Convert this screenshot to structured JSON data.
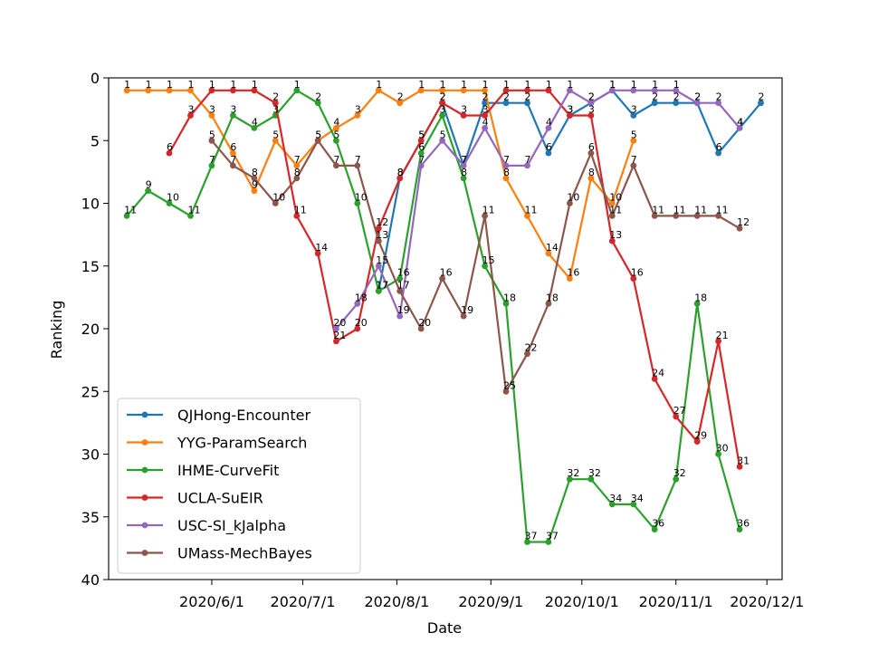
{
  "chart_data": {
    "type": "line",
    "xlabel": "Date",
    "ylabel": "Ranking",
    "ylim": [
      40,
      0
    ],
    "y_inverted": true,
    "y_ticks": [
      0,
      5,
      10,
      15,
      20,
      25,
      30,
      35,
      40
    ],
    "x_ticks": [
      {
        "date": "2020-06-01",
        "label": "2020/6/1"
      },
      {
        "date": "2020-07-01",
        "label": "2020/7/1"
      },
      {
        "date": "2020-08-01",
        "label": "2020/8/1"
      },
      {
        "date": "2020-09-01",
        "label": "2020/9/1"
      },
      {
        "date": "2020-10-01",
        "label": "2020/10/1"
      },
      {
        "date": "2020-11-01",
        "label": "2020/11/1"
      },
      {
        "date": "2020-12-01",
        "label": "2020/12/1"
      }
    ],
    "x_range": [
      "2020-04-28",
      "2020-12-06"
    ],
    "grid": false,
    "legend_position": "lower-left",
    "series": [
      {
        "name": "QJHong-Encounter",
        "color": "#1f77b4",
        "points": [
          [
            "2020-07-26",
            17
          ],
          [
            "2020-08-02",
            8
          ],
          [
            "2020-08-09",
            5
          ],
          [
            "2020-08-16",
            2
          ],
          [
            "2020-08-23",
            7
          ],
          [
            "2020-08-30",
            2
          ],
          [
            "2020-09-06",
            2
          ],
          [
            "2020-09-13",
            2
          ],
          [
            "2020-09-20",
            6
          ],
          [
            "2020-09-27",
            3
          ],
          [
            "2020-10-04",
            2
          ],
          [
            "2020-10-11",
            1
          ],
          [
            "2020-10-18",
            3
          ],
          [
            "2020-10-25",
            2
          ],
          [
            "2020-11-01",
            2
          ],
          [
            "2020-11-08",
            2
          ],
          [
            "2020-11-15",
            6
          ],
          [
            "2020-11-22",
            4
          ],
          [
            "2020-11-29",
            2
          ]
        ]
      },
      {
        "name": "YYG-ParamSearch",
        "color": "#ff7f0e",
        "points": [
          [
            "2020-05-04",
            1
          ],
          [
            "2020-05-11",
            1
          ],
          [
            "2020-05-18",
            1
          ],
          [
            "2020-05-25",
            1
          ],
          [
            "2020-06-01",
            3
          ],
          [
            "2020-06-08",
            6
          ],
          [
            "2020-06-15",
            9
          ],
          [
            "2020-06-22",
            5
          ],
          [
            "2020-06-29",
            7
          ],
          [
            "2020-07-06",
            5
          ],
          [
            "2020-07-12",
            4
          ],
          [
            "2020-07-19",
            3
          ],
          [
            "2020-07-26",
            1
          ],
          [
            "2020-08-02",
            2
          ],
          [
            "2020-08-09",
            1
          ],
          [
            "2020-08-16",
            1
          ],
          [
            "2020-08-23",
            1
          ],
          [
            "2020-08-30",
            1
          ],
          [
            "2020-09-06",
            8
          ],
          [
            "2020-09-13",
            11
          ],
          [
            "2020-09-20",
            14
          ],
          [
            "2020-09-27",
            16
          ],
          [
            "2020-10-04",
            8
          ],
          [
            "2020-10-11",
            10
          ],
          [
            "2020-10-18",
            5
          ]
        ]
      },
      {
        "name": "IHME-CurveFit",
        "color": "#2ca02c",
        "points": [
          [
            "2020-05-04",
            11
          ],
          [
            "2020-05-11",
            9
          ],
          [
            "2020-05-18",
            10
          ],
          [
            "2020-05-25",
            11
          ],
          [
            "2020-06-01",
            7
          ],
          [
            "2020-06-08",
            3
          ],
          [
            "2020-06-15",
            4
          ],
          [
            "2020-06-22",
            3
          ],
          [
            "2020-06-29",
            1
          ],
          [
            "2020-07-06",
            2
          ],
          [
            "2020-07-12",
            5
          ],
          [
            "2020-07-19",
            10
          ],
          [
            "2020-07-26",
            17
          ],
          [
            "2020-08-02",
            16
          ],
          [
            "2020-08-09",
            6
          ],
          [
            "2020-08-16",
            3
          ],
          [
            "2020-08-23",
            8
          ],
          [
            "2020-08-30",
            15
          ],
          [
            "2020-09-06",
            18
          ],
          [
            "2020-09-13",
            37
          ],
          [
            "2020-09-20",
            37
          ],
          [
            "2020-09-27",
            32
          ],
          [
            "2020-10-04",
            32
          ],
          [
            "2020-10-11",
            34
          ],
          [
            "2020-10-18",
            34
          ],
          [
            "2020-10-25",
            36
          ],
          [
            "2020-11-01",
            32
          ],
          [
            "2020-11-08",
            18
          ],
          [
            "2020-11-15",
            30
          ],
          [
            "2020-11-22",
            36
          ]
        ]
      },
      {
        "name": "UCLA-SuEIR",
        "color": "#d62728",
        "points": [
          [
            "2020-05-18",
            6
          ],
          [
            "2020-05-25",
            3
          ],
          [
            "2020-06-01",
            1
          ],
          [
            "2020-06-08",
            1
          ],
          [
            "2020-06-15",
            1
          ],
          [
            "2020-06-22",
            2
          ],
          [
            "2020-06-29",
            11
          ],
          [
            "2020-07-06",
            14
          ],
          [
            "2020-07-12",
            21
          ],
          [
            "2020-07-19",
            20
          ],
          [
            "2020-07-26",
            12
          ],
          [
            "2020-08-02",
            8
          ],
          [
            "2020-08-09",
            5
          ],
          [
            "2020-08-16",
            2
          ],
          [
            "2020-08-23",
            3
          ],
          [
            "2020-08-30",
            3
          ],
          [
            "2020-09-06",
            1
          ],
          [
            "2020-09-13",
            1
          ],
          [
            "2020-09-20",
            1
          ],
          [
            "2020-09-27",
            3
          ],
          [
            "2020-10-04",
            3
          ],
          [
            "2020-10-11",
            13
          ],
          [
            "2020-10-18",
            16
          ],
          [
            "2020-10-25",
            24
          ],
          [
            "2020-11-01",
            27
          ],
          [
            "2020-11-08",
            29
          ],
          [
            "2020-11-15",
            21
          ],
          [
            "2020-11-22",
            31
          ]
        ]
      },
      {
        "name": "USC-SI_kJalpha",
        "color": "#9467bd",
        "points": [
          [
            "2020-07-12",
            20
          ],
          [
            "2020-07-19",
            18
          ],
          [
            "2020-07-26",
            15
          ],
          [
            "2020-08-02",
            19
          ],
          [
            "2020-08-09",
            7
          ],
          [
            "2020-08-16",
            5
          ],
          [
            "2020-08-23",
            7
          ],
          [
            "2020-08-30",
            4
          ],
          [
            "2020-09-06",
            7
          ],
          [
            "2020-09-13",
            7
          ],
          [
            "2020-09-20",
            4
          ],
          [
            "2020-09-27",
            1
          ],
          [
            "2020-10-04",
            2
          ],
          [
            "2020-10-11",
            1
          ],
          [
            "2020-10-18",
            1
          ],
          [
            "2020-10-25",
            1
          ],
          [
            "2020-11-01",
            1
          ],
          [
            "2020-11-08",
            2
          ],
          [
            "2020-11-15",
            2
          ],
          [
            "2020-11-22",
            4
          ]
        ]
      },
      {
        "name": "UMass-MechBayes",
        "color": "#8c564b",
        "points": [
          [
            "2020-06-01",
            5
          ],
          [
            "2020-06-08",
            7
          ],
          [
            "2020-06-15",
            8
          ],
          [
            "2020-06-22",
            10
          ],
          [
            "2020-06-29",
            8
          ],
          [
            "2020-07-06",
            5
          ],
          [
            "2020-07-12",
            7
          ],
          [
            "2020-07-19",
            7
          ],
          [
            "2020-07-26",
            13
          ],
          [
            "2020-08-02",
            17
          ],
          [
            "2020-08-09",
            20
          ],
          [
            "2020-08-16",
            16
          ],
          [
            "2020-08-23",
            19
          ],
          [
            "2020-08-30",
            11
          ],
          [
            "2020-09-06",
            25
          ],
          [
            "2020-09-13",
            22
          ],
          [
            "2020-09-20",
            18
          ],
          [
            "2020-09-27",
            10
          ],
          [
            "2020-10-04",
            6
          ],
          [
            "2020-10-11",
            11
          ],
          [
            "2020-10-18",
            7
          ],
          [
            "2020-10-25",
            11
          ],
          [
            "2020-11-01",
            11
          ],
          [
            "2020-11-08",
            11
          ],
          [
            "2020-11-15",
            11
          ],
          [
            "2020-11-22",
            12
          ]
        ]
      }
    ]
  }
}
